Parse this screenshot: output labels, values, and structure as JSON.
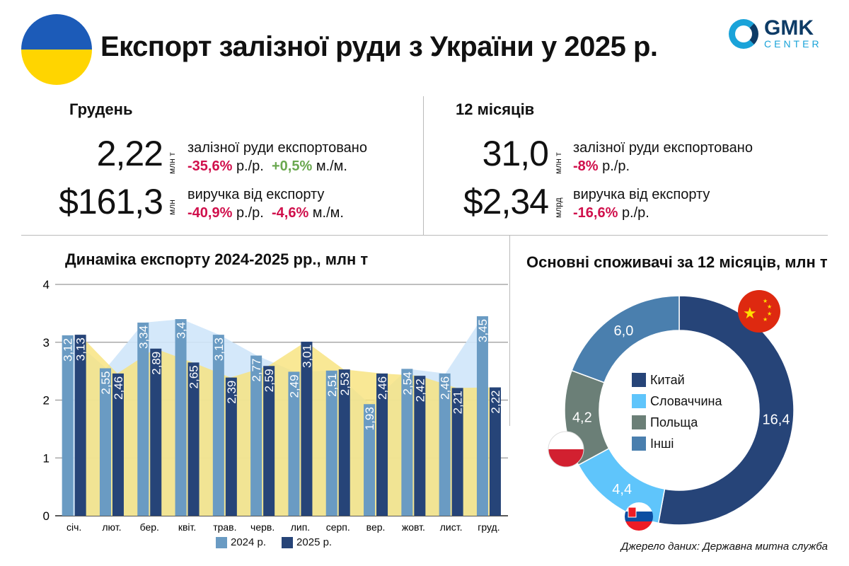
{
  "header": {
    "title": "Експорт залізної руди з України у 2025 р.",
    "logo_main": "GMK",
    "logo_sub": "CENTER"
  },
  "december": {
    "heading": "Грудень",
    "volume": {
      "value": "2,22",
      "unit": "млн т",
      "label": "залізної руди експортовано",
      "yoy": "-35,6%",
      "yoy_suffix": "р./р.",
      "mom": "+0,5%",
      "mom_suffix": "м./м."
    },
    "revenue": {
      "value": "$161,3",
      "unit": "млн",
      "label": "виручка від експорту",
      "yoy": "-40,9%",
      "yoy_suffix": "р./р.",
      "mom": "-4,6%",
      "mom_suffix": "м./м."
    }
  },
  "year": {
    "heading": "12 місяців",
    "volume": {
      "value": "31,0",
      "unit": "млн т",
      "label": "залізної руди експортовано",
      "yoy": "-8%",
      "yoy_suffix": "р./р."
    },
    "revenue": {
      "value": "$2,34",
      "unit": "млрд",
      "label": "виручка від експорту",
      "yoy": "-16,6%",
      "yoy_suffix": "р./р."
    }
  },
  "colors": {
    "y2024": "#6a9bc3",
    "y2025": "#264478",
    "china": "#264478",
    "slovakia": "#5fc5fb",
    "poland": "#6b7f77",
    "others": "#4a7fae",
    "negative": "#d0104c",
    "positive": "#6aa84f"
  },
  "chart_data": [
    {
      "type": "bar",
      "title": "Динаміка експорту 2024-2025 рр., млн т",
      "ylim": [
        0,
        4
      ],
      "yticks": [
        "0",
        "1",
        "2",
        "3",
        "4"
      ],
      "categories": [
        "січ.",
        "лют.",
        "бер.",
        "квіт.",
        "трав.",
        "черв.",
        "лип.",
        "серп.",
        "вер.",
        "жовт.",
        "лист.",
        "груд."
      ],
      "series": [
        {
          "name": "2024 р.",
          "values": [
            3.12,
            2.55,
            3.34,
            3.4,
            3.13,
            2.77,
            2.49,
            2.51,
            1.93,
            2.54,
            2.46,
            3.45
          ],
          "labels": [
            "3,12",
            "2,55",
            "3,34",
            "3,4",
            "3,13",
            "2,77",
            "2,49",
            "2,51",
            "1,93",
            "2,54",
            "2,46",
            "3,45"
          ]
        },
        {
          "name": "2025 р.",
          "values": [
            3.13,
            2.46,
            2.89,
            2.65,
            2.39,
            2.59,
            3.01,
            2.53,
            2.46,
            2.42,
            2.21,
            2.22
          ],
          "labels": [
            "3,13",
            "2,46",
            "2,89",
            "2,65",
            "2,39",
            "2,59",
            "3,01",
            "2,53",
            "2,46",
            "2,42",
            "2,21",
            "2,22"
          ]
        }
      ]
    },
    {
      "type": "pie",
      "title": "Основні споживачі за 12 місяців, млн т",
      "categories": [
        "Китай",
        "Словаччина",
        "Польща",
        "Інші"
      ],
      "values": [
        16.4,
        4.4,
        4.2,
        6.0
      ],
      "labels": [
        "16,4",
        "4,4",
        "4,2",
        "6,0"
      ]
    }
  ],
  "source": "Джерело даних: Державна митна служба"
}
